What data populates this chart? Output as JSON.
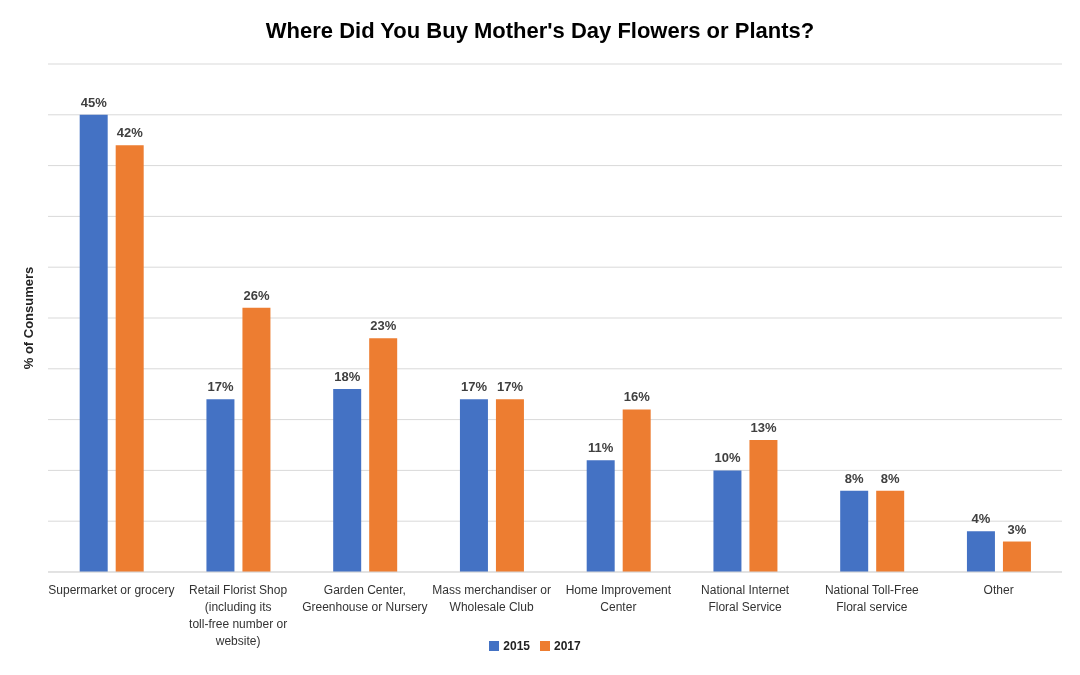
{
  "chart_data": {
    "type": "bar",
    "title": "Where Did You Buy Mother's Day Flowers or Plants?",
    "ylabel": "% of Consumers",
    "categories": [
      "Supermarket or grocery",
      "Retail Florist Shop (including its toll-free number or website)",
      "Garden Center, Greenhouse or Nursery",
      "Mass merchandiser or Wholesale Club",
      "Home Improvement Center",
      "National Internet Floral Service",
      "National Toll-Free Floral service",
      "Other"
    ],
    "series": [
      {
        "name": "2015",
        "color": "#4472c4",
        "values": [
          45,
          17,
          18,
          17,
          11,
          10,
          8,
          4
        ],
        "value_labels": [
          "45%",
          "17%",
          "18%",
          "17%",
          "11%",
          "10%",
          "8%",
          "4%"
        ]
      },
      {
        "name": "2017",
        "color": "#ed7d31",
        "values": [
          42,
          26,
          23,
          17,
          16,
          13,
          8,
          3
        ],
        "value_labels": [
          "42%",
          "26%",
          "23%",
          "17%",
          "16%",
          "13%",
          "8%",
          "3%"
        ]
      }
    ],
    "ylim": [
      0,
      50
    ],
    "grid": "y",
    "legend": "bottom",
    "tick_labels": "x"
  }
}
